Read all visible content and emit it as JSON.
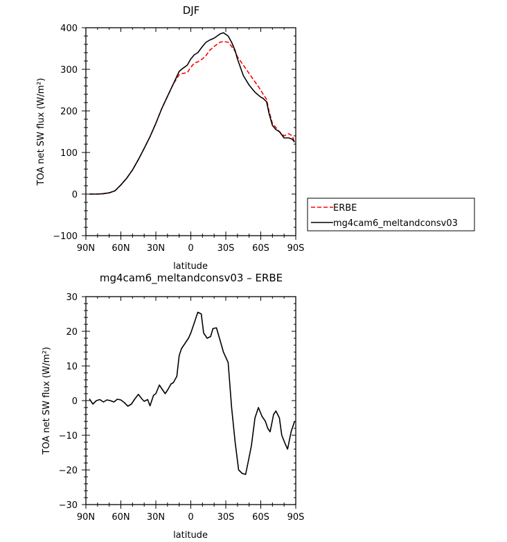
{
  "colors": {
    "erbe": "#ff0000",
    "model": "#000000",
    "axis": "#000000"
  },
  "chart_data": [
    {
      "type": "line",
      "title": "DJF",
      "xlabel": "latitude",
      "ylabel": "TOA net SW flux (W/m²)",
      "xlim": [
        -90,
        90
      ],
      "ylim": [
        -100,
        400
      ],
      "xticks": [
        {
          "value": -90,
          "label": "90N"
        },
        {
          "value": -60,
          "label": "60N"
        },
        {
          "value": -30,
          "label": "30N"
        },
        {
          "value": 0,
          "label": "0"
        },
        {
          "value": 30,
          "label": "30S"
        },
        {
          "value": 60,
          "label": "60S"
        },
        {
          "value": 90,
          "label": "90S"
        }
      ],
      "yticks": [
        -100,
        0,
        100,
        200,
        300,
        400
      ],
      "legend_position": "right, outside plot",
      "series": [
        {
          "name": "ERBE",
          "style": "dashed",
          "color": "red",
          "x": [
            -87,
            -80,
            -75,
            -70,
            -65,
            -60,
            -55,
            -50,
            -45,
            -40,
            -35,
            -30,
            -25,
            -20,
            -15,
            -10,
            -7,
            -3,
            0,
            3,
            6,
            10,
            13,
            16,
            20,
            25,
            28,
            32,
            35,
            38,
            40,
            45,
            50,
            55,
            60,
            62,
            65,
            67,
            70,
            73,
            76,
            80,
            84,
            87,
            89
          ],
          "y": [
            0,
            0,
            1,
            3,
            8,
            22,
            38,
            58,
            83,
            110,
            138,
            170,
            205,
            235,
            265,
            287,
            290,
            292,
            305,
            315,
            318,
            325,
            333,
            345,
            355,
            365,
            367,
            365,
            355,
            343,
            330,
            310,
            290,
            270,
            250,
            240,
            228,
            200,
            170,
            160,
            150,
            140,
            145,
            140,
            125
          ]
        },
        {
          "name": "mg4cam6_meltandconsv03",
          "style": "solid",
          "color": "black",
          "x": [
            -87,
            -80,
            -75,
            -70,
            -65,
            -60,
            -55,
            -50,
            -45,
            -40,
            -35,
            -30,
            -25,
            -20,
            -15,
            -10,
            -7,
            -3,
            0,
            3,
            6,
            10,
            13,
            16,
            20,
            25,
            28,
            32,
            35,
            38,
            40,
            45,
            50,
            55,
            60,
            62,
            65,
            67,
            70,
            73,
            76,
            80,
            84,
            87,
            89
          ],
          "y": [
            0,
            0,
            1,
            3,
            8,
            22,
            38,
            58,
            83,
            110,
            138,
            170,
            205,
            235,
            265,
            295,
            302,
            310,
            325,
            335,
            340,
            355,
            365,
            370,
            375,
            385,
            388,
            380,
            365,
            345,
            325,
            285,
            262,
            245,
            233,
            230,
            222,
            195,
            165,
            155,
            150,
            135,
            135,
            132,
            125
          ]
        }
      ]
    },
    {
      "type": "line",
      "title": "mg4cam6_meltandconsv03 – ERBE",
      "xlabel": "latitude",
      "ylabel": "TOA net SW flux (W/m²)",
      "xlim": [
        -90,
        90
      ],
      "ylim": [
        -30,
        30
      ],
      "xticks": [
        {
          "value": -90,
          "label": "90N"
        },
        {
          "value": -60,
          "label": "60N"
        },
        {
          "value": -30,
          "label": "30N"
        },
        {
          "value": 0,
          "label": "0"
        },
        {
          "value": 30,
          "label": "30S"
        },
        {
          "value": 60,
          "label": "60S"
        },
        {
          "value": 90,
          "label": "90S"
        }
      ],
      "yticks": [
        -30,
        -20,
        -10,
        0,
        10,
        20,
        30
      ],
      "series": [
        {
          "color": "black",
          "style": "solid",
          "x": [
            -87,
            -84,
            -81,
            -78,
            -75,
            -72,
            -69,
            -66,
            -63,
            -60,
            -57,
            -54,
            -51,
            -48,
            -45,
            -42,
            -40,
            -37,
            -35,
            -32,
            -30,
            -27,
            -25,
            -22,
            -20,
            -17,
            -15,
            -12,
            -10,
            -8,
            -5,
            -2,
            0,
            3,
            6,
            9,
            11,
            14,
            17,
            19,
            22,
            25,
            28,
            32,
            35,
            38,
            41,
            44,
            47,
            49,
            52,
            55,
            58,
            61,
            64,
            66,
            68,
            71,
            73,
            76,
            78,
            81,
            83,
            86,
            87,
            89
          ],
          "y": [
            0.5,
            -1,
            0,
            0.3,
            -0.4,
            0.2,
            0,
            -0.4,
            0.4,
            0.2,
            -0.6,
            -1.6,
            -1,
            0.5,
            1.8,
            0.5,
            -0.2,
            0.3,
            -1.5,
            1.5,
            2,
            4.5,
            3.5,
            2,
            3,
            4.8,
            5.2,
            7,
            13,
            15,
            16.5,
            18,
            19.5,
            22.5,
            25.5,
            25,
            19.5,
            18,
            18.5,
            20.8,
            21,
            17.5,
            14,
            11,
            -2,
            -12,
            -20,
            -21,
            -21.3,
            -18,
            -13,
            -5,
            -2,
            -4.5,
            -6,
            -8,
            -9,
            -4,
            -3,
            -5,
            -10,
            -12.5,
            -14,
            -9,
            -8,
            -6
          ]
        }
      ]
    }
  ]
}
